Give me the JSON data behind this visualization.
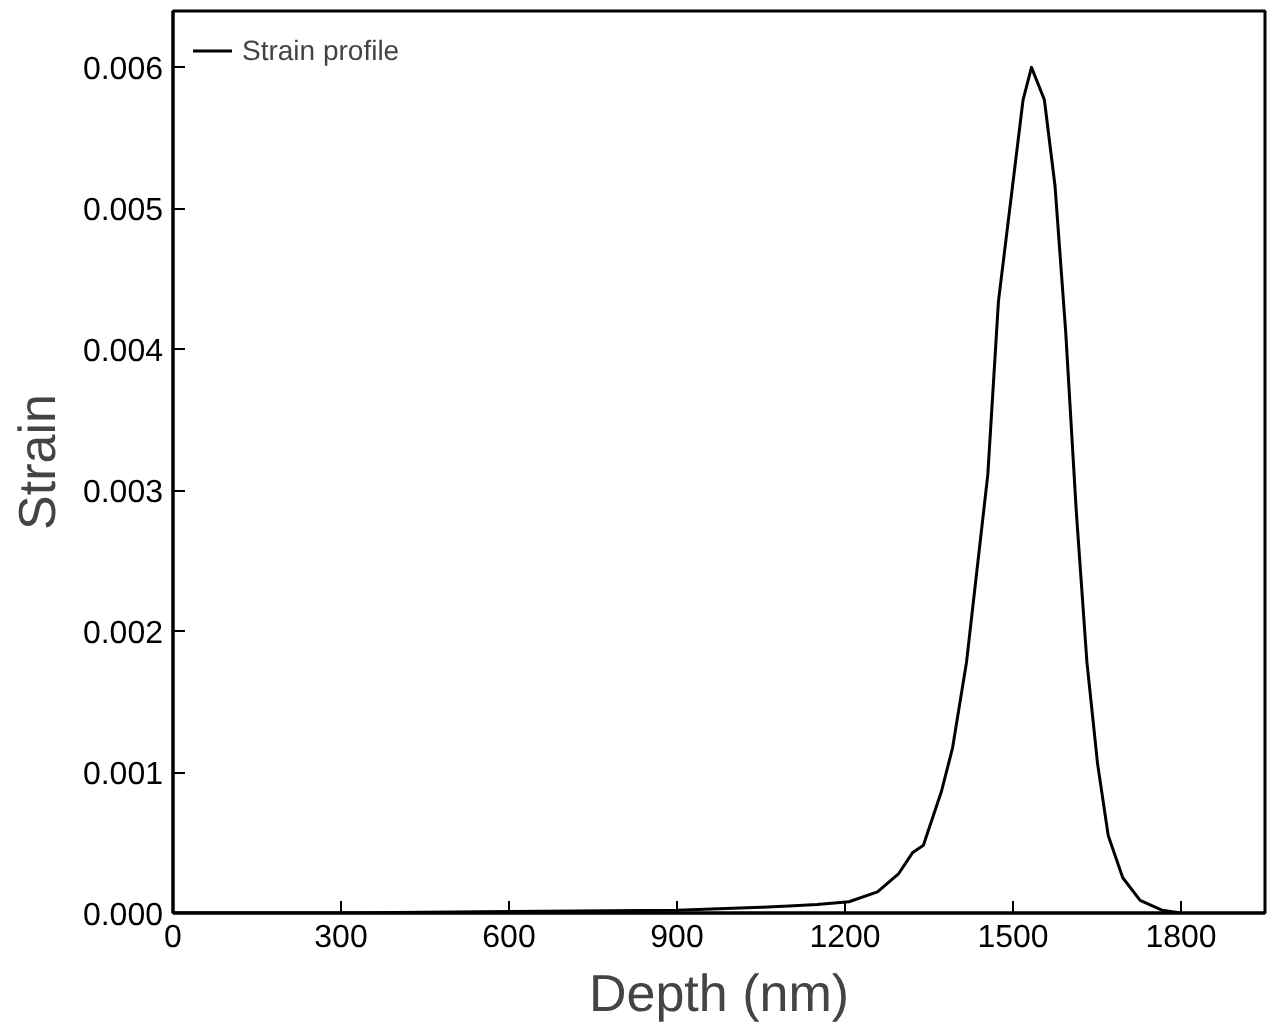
{
  "chart_data": {
    "type": "line",
    "xlabel": "Depth (nm)",
    "ylabel": "Strain",
    "x": [
      0,
      300,
      600,
      900,
      1050,
      1100,
      1150,
      1207,
      1258,
      1296,
      1321,
      1340,
      1372,
      1392,
      1417,
      1455,
      1474,
      1518,
      1533,
      1556,
      1575,
      1594,
      1613,
      1632,
      1651,
      1670,
      1696,
      1727,
      1766,
      1800
    ],
    "series": [
      {
        "name": "Strain profile",
        "color": "#000000",
        "values": [
          0,
          0,
          1e-05,
          2e-05,
          4e-05,
          5e-05,
          6e-05,
          8e-05,
          0.00015,
          0.00028,
          0.00043,
          0.00048,
          0.00086,
          0.00117,
          0.00178,
          0.00311,
          0.00434,
          0.00577,
          0.006,
          0.00577,
          0.00516,
          0.00413,
          0.00285,
          0.00178,
          0.00106,
          0.00055,
          0.00025,
          9e-05,
          2e-05,
          0
        ]
      }
    ],
    "xlim": [
      0,
      1950
    ],
    "ylim": [
      0,
      0.0064
    ],
    "xticks": [
      0,
      300,
      600,
      900,
      1200,
      1500,
      1800
    ],
    "yticks": [
      {
        "value": 0,
        "label": "0.000"
      },
      {
        "value": 0.001,
        "label": "0.001"
      },
      {
        "value": 0.002,
        "label": "0.002"
      },
      {
        "value": 0.003,
        "label": "0.003"
      },
      {
        "value": 0.004,
        "label": "0.004"
      },
      {
        "value": 0.005,
        "label": "0.005"
      },
      {
        "value": 0.006,
        "label": "0.006"
      }
    ],
    "grid": false,
    "legend": "top left",
    "line_style": "solid"
  }
}
